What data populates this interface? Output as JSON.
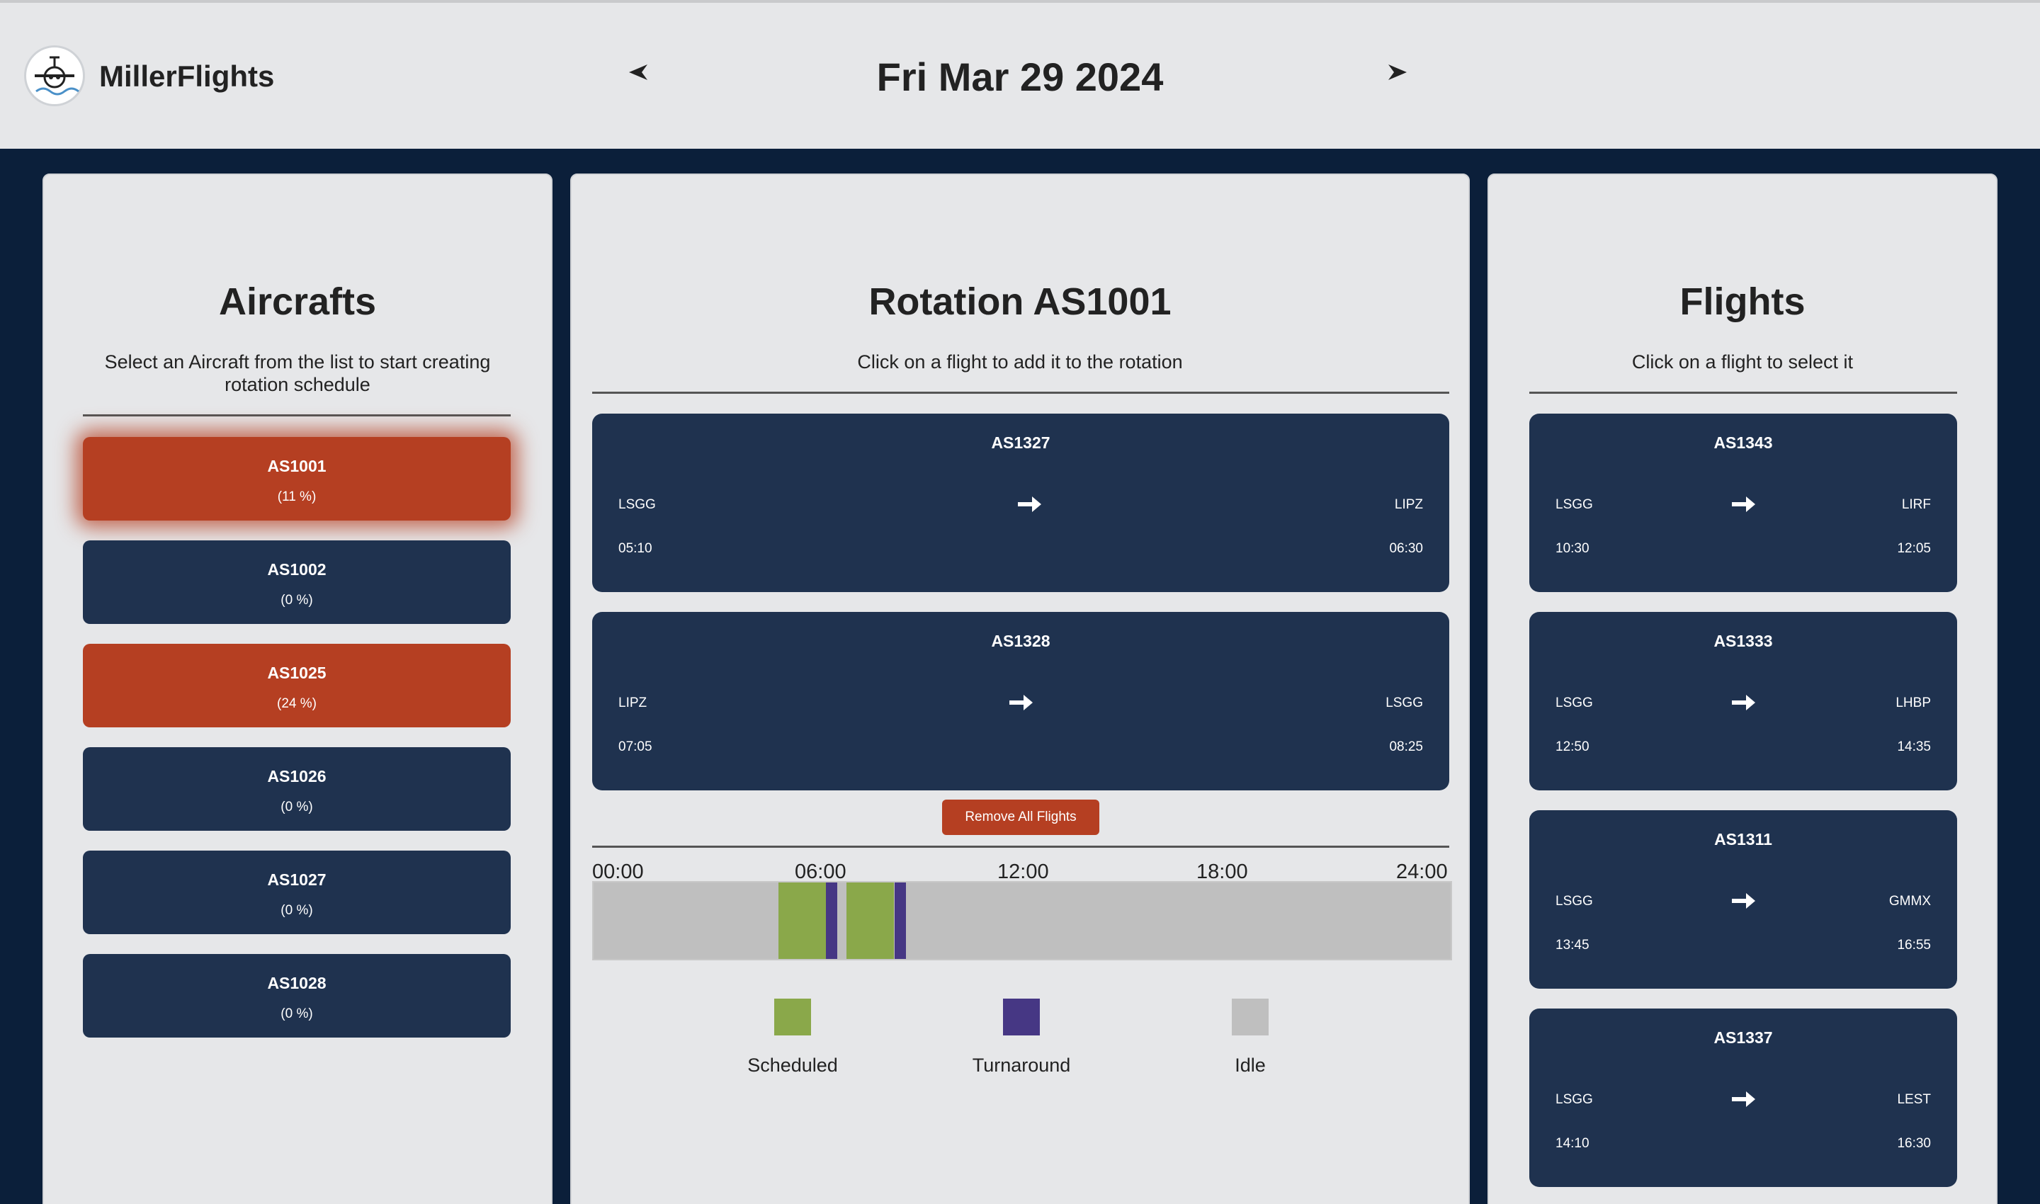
{
  "header": {
    "brand": "MillerFlights",
    "date": "Fri Mar 29 2024",
    "prev_arrow": "◀",
    "next_arrow": "▶"
  },
  "colors": {
    "primary_dark": "#1f324f",
    "accent": "#b53f22",
    "background": "#0b1f3a",
    "panel": "#e6e7e9",
    "scheduled": "#8aa84a",
    "turnaround": "#463784",
    "idle": "#bfbfbf"
  },
  "aircrafts": {
    "title": "Aircrafts",
    "subtitle": "Select an Aircraft from the list to start creating rotation schedule",
    "items": [
      {
        "id": "AS1001",
        "pct": "(11 %)",
        "state": "selected"
      },
      {
        "id": "AS1002",
        "pct": "(0 %)",
        "state": "idle"
      },
      {
        "id": "AS1025",
        "pct": "(24 %)",
        "state": "active"
      },
      {
        "id": "AS1026",
        "pct": "(0 %)",
        "state": "idle"
      },
      {
        "id": "AS1027",
        "pct": "(0 %)",
        "state": "idle"
      },
      {
        "id": "AS1028",
        "pct": "(0 %)",
        "state": "idle"
      }
    ]
  },
  "rotation": {
    "title": "Rotation AS1001",
    "subtitle": "Click on a flight to add it to the rotation",
    "flights": [
      {
        "id": "AS1327",
        "from": "LSGG",
        "to": "LIPZ",
        "dep": "05:10",
        "arr": "06:30"
      },
      {
        "id": "AS1328",
        "from": "LIPZ",
        "to": "LSGG",
        "dep": "07:05",
        "arr": "08:25"
      }
    ],
    "remove_label": "Remove All Flights",
    "timeline": {
      "ticks": [
        "00:00",
        "06:00",
        "12:00",
        "18:00",
        "24:00"
      ],
      "range_hours": [
        0,
        24
      ],
      "segments": [
        {
          "type": "scheduled",
          "start": 5.17,
          "end": 6.5
        },
        {
          "type": "turnaround",
          "start": 6.5,
          "end": 6.83
        },
        {
          "type": "scheduled",
          "start": 7.08,
          "end": 8.42
        },
        {
          "type": "turnaround",
          "start": 8.42,
          "end": 8.75
        }
      ]
    },
    "legend": [
      {
        "label": "Scheduled",
        "color": "#8aa84a"
      },
      {
        "label": "Turnaround",
        "color": "#463784"
      },
      {
        "label": "Idle",
        "color": "#bfbfbf"
      }
    ]
  },
  "flights": {
    "title": "Flights",
    "subtitle": "Click on a flight to select it",
    "items": [
      {
        "id": "AS1343",
        "from": "LSGG",
        "to": "LIRF",
        "dep": "10:30",
        "arr": "12:05"
      },
      {
        "id": "AS1333",
        "from": "LSGG",
        "to": "LHBP",
        "dep": "12:50",
        "arr": "14:35"
      },
      {
        "id": "AS1311",
        "from": "LSGG",
        "to": "GMMX",
        "dep": "13:45",
        "arr": "16:55"
      },
      {
        "id": "AS1337",
        "from": "LSGG",
        "to": "LEST",
        "dep": "14:10",
        "arr": "16:30"
      }
    ]
  }
}
